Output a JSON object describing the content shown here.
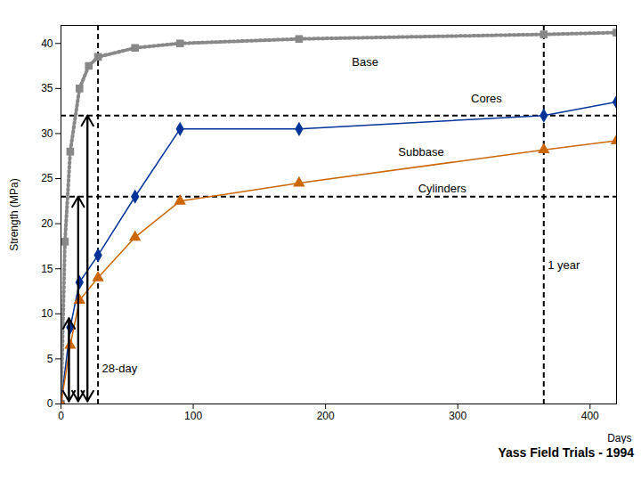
{
  "chart_data": {
    "type": "line",
    "title": "Yass Field Trials - 1994",
    "x_label": "Days",
    "y_label": "Strength (MPa)",
    "series": [
      {
        "name": "Base",
        "color": "#888888",
        "marker": "square",
        "line_style": "dotted",
        "x": [
          0,
          3,
          7,
          14,
          21,
          28,
          56,
          90,
          180,
          365,
          420
        ],
        "values": [
          0,
          18,
          28,
          35,
          37.5,
          38.5,
          39.5,
          40.0,
          40.5,
          41.0,
          41.2
        ]
      },
      {
        "name": "Cores",
        "color": "#003399",
        "marker": "diamond",
        "line_style": "solid",
        "x": [
          0,
          7,
          14,
          28,
          56,
          90,
          180,
          365,
          420
        ],
        "values": [
          0,
          8.5,
          13.5,
          16.5,
          23.0,
          30.5,
          30.5,
          32.0,
          33.5
        ]
      },
      {
        "name": "Cylinders",
        "color": "#CC6600",
        "marker": "triangle",
        "line_style": "solid",
        "x": [
          0,
          7,
          14,
          28,
          56,
          90,
          180,
          365,
          420
        ],
        "values": [
          0,
          6.5,
          11.5,
          14.0,
          18.5,
          22.5,
          24.5,
          28.2,
          29.2
        ]
      }
    ],
    "hlines": [
      32.0,
      23.0
    ],
    "vlines": [
      28,
      365
    ],
    "arrows": [
      {
        "x": 20,
        "y1": 0.3,
        "y2": 32.0
      },
      {
        "x": 13,
        "y1": 0.3,
        "y2": 23.0
      },
      {
        "x": 6,
        "y1": 0.3,
        "y2": 9.5
      }
    ],
    "annotations": [
      {
        "text": "Base",
        "x": 220,
        "y": 37.5
      },
      {
        "text": "Subbase",
        "x": 255,
        "y": 27.5
      },
      {
        "text": "Cores",
        "x": 310,
        "y": 33.5
      },
      {
        "text": "Cylinders",
        "x": 270,
        "y": 23.5
      },
      {
        "text": "28-day",
        "x": 31,
        "y": 3.5
      },
      {
        "text": "1 year",
        "x": 368,
        "y": 15
      }
    ],
    "xlim": [
      0,
      420
    ],
    "ylim": [
      0,
      42
    ],
    "xticks": [
      0,
      100,
      200,
      300,
      400
    ],
    "yticks": [
      0,
      5,
      10,
      15,
      20,
      25,
      30,
      35,
      40
    ],
    "grid": false
  }
}
